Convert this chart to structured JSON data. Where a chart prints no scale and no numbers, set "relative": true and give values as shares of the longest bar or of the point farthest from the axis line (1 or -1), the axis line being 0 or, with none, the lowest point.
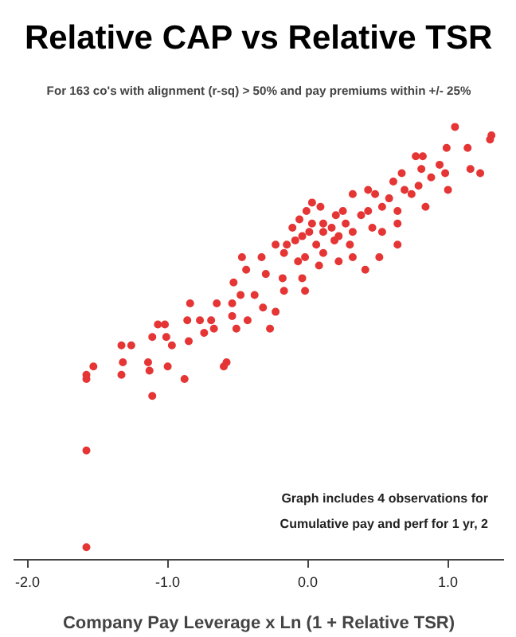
{
  "chart_data": {
    "type": "scatter",
    "title": "Relative CAP vs Relative TSR",
    "subtitle": "For 163 co's with alignment (r-sq) > 50% and pay premiums within +/- 25%",
    "xlabel": "Company Pay Leverage x Ln (1 + Relative TSR)",
    "relative": true,
    "marker": "circle",
    "grid": false,
    "xlim": [
      -2.1,
      1.4
    ],
    "xticks": [
      {
        "value": -2,
        "label": "-2.0"
      },
      {
        "value": -1,
        "label": "-1.0"
      },
      {
        "value": 0,
        "label": "0.0"
      },
      {
        "value": 1,
        "label": "1.0"
      }
    ],
    "annotations": [
      "Graph includes 4 observations for",
      "Cumulative pay and perf for 1 yr, 2"
    ],
    "series": [
      {
        "color": "#e53535",
        "x": [
          1.05,
          1.31,
          1.3,
          0.99,
          1.14,
          0.77,
          0.82,
          0.81,
          1.16,
          1.23,
          0.94,
          0.98,
          0.67,
          0.61,
          0.88,
          0.74,
          1.0,
          0.43,
          0.84,
          0.32,
          0.03,
          0.53,
          0.64,
          0.25,
          -0.06,
          0.46,
          0.64,
          0.11,
          0.32,
          0.19,
          0.01,
          -0.09,
          -0.23,
          0.64,
          0.51,
          0.32,
          -0.02,
          -0.17,
          -0.33,
          -0.47,
          0.22,
          0.08,
          -0.04,
          -0.18,
          -0.3,
          -0.44,
          -0.53,
          0.41,
          -0.17,
          -0.02,
          -0.38,
          -0.48,
          -0.32,
          -0.54,
          -0.23,
          -0.43,
          -0.84,
          -0.65,
          -0.54,
          -0.69,
          -0.77,
          -0.86,
          -0.27,
          -0.51,
          -0.67,
          -0.74,
          -1.07,
          -1.02,
          -1.11,
          -1.01,
          -0.97,
          -0.85,
          -1.33,
          -1.26,
          -1.32,
          -0.58,
          -0.6,
          -1.53,
          -1.58,
          -1.58,
          -1.14,
          -1.13,
          -1.0,
          -1.33,
          -0.88,
          0.11,
          0.17,
          0.22,
          0.06,
          0.27,
          0.38,
          -0.04,
          -0.11,
          0.43,
          0.11,
          0.03,
          0.2,
          0.3,
          -0.15,
          -0.01,
          0.09,
          -0.07,
          0.53,
          0.58,
          0.48,
          0.69,
          0.79,
          -1.11,
          -1.58,
          -1.58
        ],
        "values": [
          1.0,
          0.98,
          0.97,
          0.95,
          0.95,
          0.93,
          0.93,
          0.9,
          0.9,
          0.89,
          0.91,
          0.89,
          0.89,
          0.87,
          0.88,
          0.84,
          0.85,
          0.85,
          0.81,
          0.84,
          0.82,
          0.81,
          0.8,
          0.8,
          0.78,
          0.76,
          0.77,
          0.77,
          0.75,
          0.73,
          0.75,
          0.73,
          0.72,
          0.72,
          0.69,
          0.69,
          0.69,
          0.7,
          0.69,
          0.69,
          0.68,
          0.67,
          0.64,
          0.64,
          0.65,
          0.66,
          0.63,
          0.66,
          0.61,
          0.61,
          0.6,
          0.6,
          0.57,
          0.58,
          0.56,
          0.54,
          0.58,
          0.58,
          0.55,
          0.54,
          0.54,
          0.54,
          0.52,
          0.52,
          0.52,
          0.51,
          0.53,
          0.53,
          0.5,
          0.5,
          0.48,
          0.49,
          0.48,
          0.48,
          0.44,
          0.44,
          0.43,
          0.43,
          0.41,
          0.4,
          0.44,
          0.42,
          0.43,
          0.41,
          0.4,
          0.75,
          0.76,
          0.74,
          0.72,
          0.77,
          0.79,
          0.74,
          0.76,
          0.8,
          0.7,
          0.77,
          0.79,
          0.72,
          0.72,
          0.8,
          0.81,
          0.68,
          0.75,
          0.83,
          0.84,
          0.85,
          0.86,
          0.36,
          0.23,
          0.0
        ]
      }
    ]
  }
}
